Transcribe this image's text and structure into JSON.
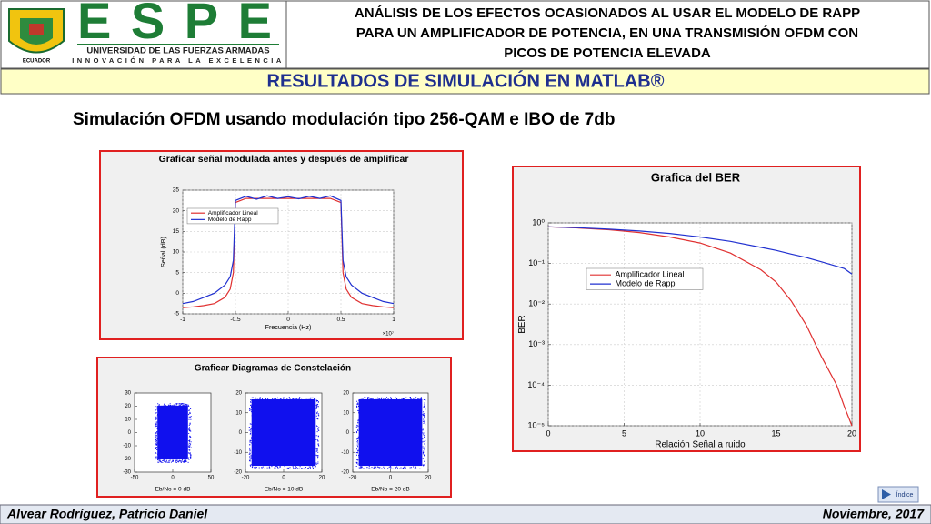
{
  "header": {
    "logo_word": "ESPE",
    "logo_country": "ECUADOR",
    "university_name": "UNIVERSIDAD DE LAS FUERZAS ARMADAS",
    "motto": "INNOVACIÓN PARA LA EXCELENCIA",
    "title_lines": [
      "ANÁLISIS DE LOS EFECTOS OCASIONADOS AL USAR EL MODELO DE RAPP",
      "PARA UN AMPLIFICADOR DE POTENCIA, EN UNA TRANSMISIÓN OFDM CON",
      "PICOS DE POTENCIA ELEVADA"
    ]
  },
  "section_title": "RESULTADOS DE SIMULACIÓN EN MATLAB®",
  "subtitle": "Simulación OFDM usando modulación tipo 256-QAM e IBO de 7db",
  "spectrum": {
    "type": "line",
    "title": "Graficar señal modulada antes y después de amplificar",
    "xlabel": "Frecuencia (Hz)",
    "ylabel": "Señal (dB)",
    "x_multiplier": "×10⁷",
    "x": [
      -1,
      -0.9,
      -0.8,
      -0.7,
      -0.6,
      -0.55,
      -0.52,
      -0.5,
      -0.4,
      -0.3,
      -0.2,
      -0.1,
      0,
      0.1,
      0.2,
      0.3,
      0.4,
      0.5,
      0.52,
      0.55,
      0.6,
      0.7,
      0.8,
      0.9,
      1
    ],
    "series": [
      {
        "name": "Amplificador Lineal",
        "color": "#e03030",
        "values": [
          -3.5,
          -3.3,
          -3,
          -2.5,
          -1,
          1,
          5,
          22,
          23,
          23,
          23,
          23,
          23,
          23,
          23,
          23,
          23,
          22,
          5,
          1,
          -1,
          -2.5,
          -3,
          -3.3,
          -3.5
        ]
      },
      {
        "name": "Modelo de Rapp",
        "color": "#2030d0",
        "values": [
          -2.5,
          -2,
          -1,
          0,
          2,
          4,
          8,
          22.5,
          23.5,
          22.8,
          23.6,
          23,
          23.4,
          22.9,
          23.5,
          23,
          23.6,
          22.5,
          8,
          4,
          2,
          0,
          -1,
          -2,
          -2.5
        ]
      }
    ],
    "xlim": [
      -1,
      1
    ],
    "ylim": [
      -5,
      25
    ],
    "xticks": [
      -1,
      -0.5,
      0,
      0.5,
      1
    ],
    "yticks": [
      -5,
      0,
      5,
      10,
      15,
      20,
      25
    ],
    "grid": true,
    "log_y": false,
    "legend": "upper left"
  },
  "constellation": {
    "title": "Graficar Diagramas de Constelación",
    "plots": [
      {
        "xlabel": "Eb/No = 0 dB",
        "xlim": [
          -50,
          50
        ],
        "ylim": [
          -30,
          30
        ],
        "xticks": [
          -50,
          0,
          50
        ],
        "yticks": [
          -30,
          -20,
          -10,
          0,
          10,
          20,
          30
        ]
      },
      {
        "xlabel": "Eb/No = 10 dB",
        "xlim": [
          -20,
          20
        ],
        "ylim": [
          -20,
          20
        ],
        "xticks": [
          -20,
          0,
          20
        ],
        "yticks": [
          -20,
          -10,
          0,
          10,
          20
        ]
      },
      {
        "xlabel": "Eb/No = 20 dB",
        "xlim": [
          -20,
          20
        ],
        "ylim": [
          -20,
          20
        ],
        "xticks": [
          -20,
          0,
          20
        ],
        "yticks": [
          -20,
          -10,
          0,
          10,
          20
        ]
      }
    ]
  },
  "ber": {
    "type": "line",
    "title": "Grafica del BER",
    "xlabel": "Relación Señal a ruido",
    "ylabel": "BER",
    "x": [
      0,
      2,
      4,
      6,
      8,
      10,
      12,
      14,
      15,
      16,
      17,
      18,
      19,
      19.5,
      20
    ],
    "series": [
      {
        "name": "Amplificador Lineal",
        "color": "#e03030",
        "values": [
          0.8,
          0.75,
          0.68,
          0.58,
          0.45,
          0.32,
          0.18,
          0.07,
          0.035,
          0.012,
          0.003,
          0.0005,
          0.0001,
          3e-05,
          1e-05
        ]
      },
      {
        "name": "Modelo de Rapp",
        "color": "#2030d0",
        "values": [
          0.8,
          0.76,
          0.7,
          0.63,
          0.55,
          0.45,
          0.35,
          0.25,
          0.21,
          0.17,
          0.14,
          0.11,
          0.085,
          0.075,
          0.055
        ]
      }
    ],
    "xlim": [
      0,
      20
    ],
    "ylim": [
      1e-05,
      1
    ],
    "xticks": [
      0,
      5,
      10,
      15,
      20
    ],
    "yticks": [
      {
        "value": 1,
        "label": "10⁰"
      },
      {
        "value": 0.1,
        "label": "10⁻¹"
      },
      {
        "value": 0.01,
        "label": "10⁻²"
      },
      {
        "value": 0.001,
        "label": "10⁻³"
      },
      {
        "value": 0.0001,
        "label": "10⁻⁴"
      },
      {
        "value": 1e-05,
        "label": "10⁻⁵"
      }
    ],
    "grid": true,
    "log_y": true,
    "legend": "upper left"
  },
  "footer": {
    "author": "Alvear Rodríguez, Patricio Daniel",
    "date": "Noviembre, 2017",
    "index_button": "Índice"
  }
}
